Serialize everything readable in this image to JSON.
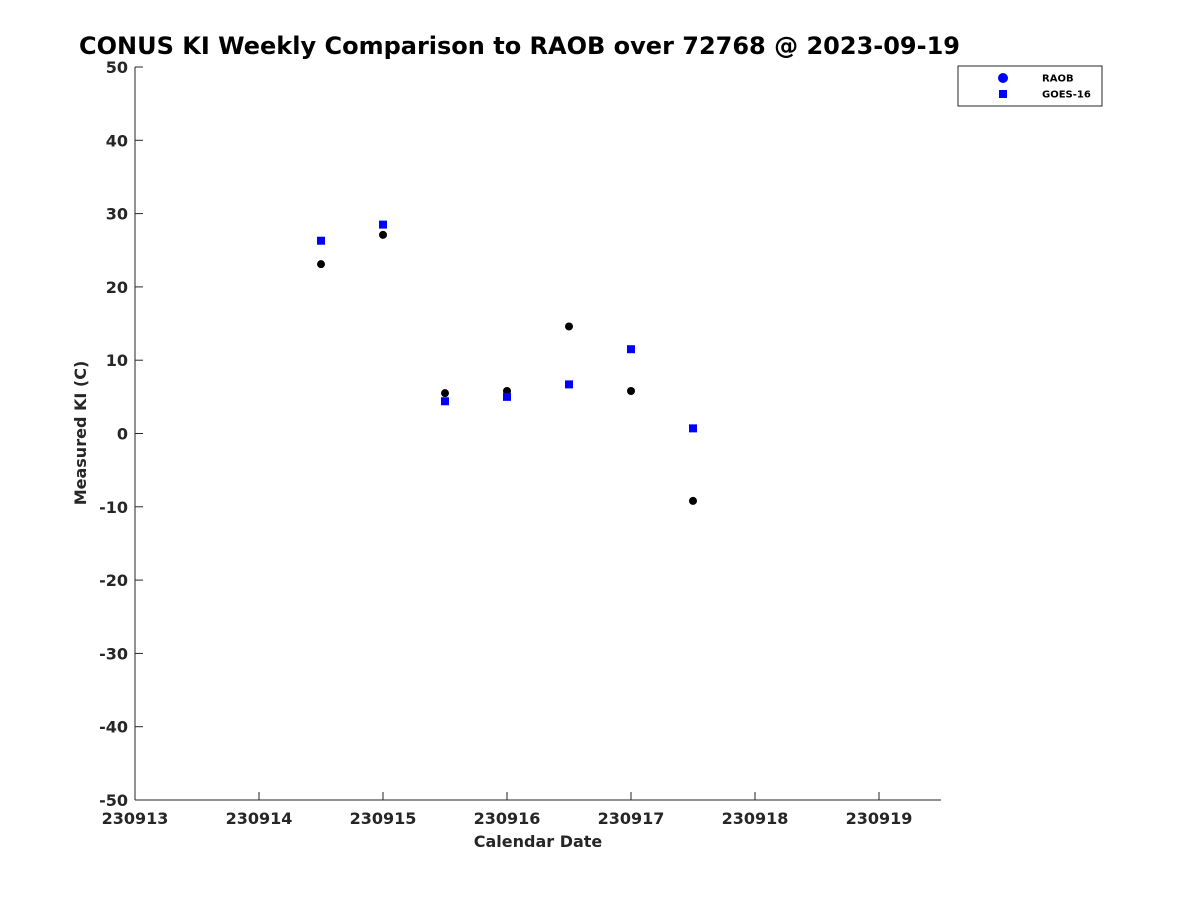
{
  "chart_data": {
    "type": "scatter",
    "title": "CONUS KI Weekly Comparison to RAOB over 72768 @ 2023-09-19",
    "xlabel": "Calendar Date",
    "ylabel": "Measured KI (C)",
    "xlim": [
      230913,
      230919.5
    ],
    "ylim": [
      -50,
      50
    ],
    "x_ticks": [
      230913,
      230914,
      230915,
      230916,
      230917,
      230918,
      230919
    ],
    "x_tick_labels": [
      "230913",
      "230914",
      "230915",
      "230916",
      "230917",
      "230918",
      "230919"
    ],
    "y_ticks": [
      -50,
      -40,
      -30,
      -20,
      -10,
      0,
      10,
      20,
      30,
      40,
      50
    ],
    "y_tick_labels": [
      "-50",
      "-40",
      "-30",
      "-20",
      "-10",
      "0",
      "10",
      "20",
      "30",
      "40",
      "50"
    ],
    "grid": false,
    "legend_position": "top-right",
    "series": [
      {
        "name": "RAOB",
        "marker": "circle",
        "color": "#000000",
        "legend_color": "#0000ff",
        "x": [
          230914.5,
          230915,
          230915.5,
          230916,
          230916.5,
          230917,
          230917.5
        ],
        "y": [
          23.1,
          27.1,
          5.5,
          5.8,
          14.6,
          5.8,
          -9.2
        ]
      },
      {
        "name": "GOES-16",
        "marker": "square",
        "color": "#0000ff",
        "legend_color": "#0000ff",
        "x": [
          230914.5,
          230915,
          230915.5,
          230916,
          230916.5,
          230917,
          230917.5
        ],
        "y": [
          26.3,
          28.5,
          4.4,
          5.0,
          6.7,
          11.5,
          0.7
        ]
      }
    ]
  }
}
